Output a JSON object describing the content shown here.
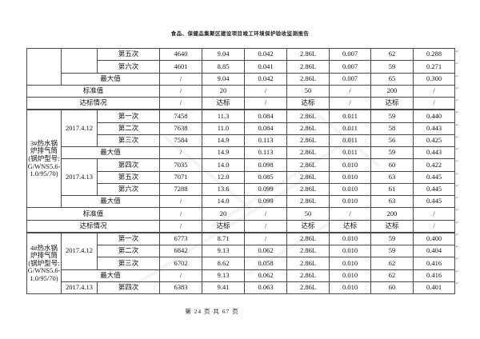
{
  "page": {
    "title": "食品、保健品集聚区建设项目竣工环境保护验收监测报告",
    "footer": "第 24 页 共 67 页",
    "paragraph_mark": "↵"
  },
  "colors": {
    "ink": "#111111",
    "table_border": "#4a4a4a",
    "watermark": "#dcdcdc"
  },
  "table": {
    "columns": 10,
    "rows": [
      {
        "cells": [
          {
            "t": "",
            "rs": 3,
            "n": "boiler-label-cell"
          },
          {
            "t": "",
            "rs": 2,
            "n": "date-cell"
          },
          {
            "t": "第五次",
            "n": "sample-round"
          },
          {
            "t": "4640",
            "n": "value-cell"
          },
          {
            "t": "9.04",
            "n": "value-cell"
          },
          {
            "t": "0.042",
            "n": "value-cell"
          },
          {
            "t": "2.86L",
            "n": "value-cell"
          },
          {
            "t": "0.007",
            "n": "value-cell"
          },
          {
            "t": "62",
            "n": "value-cell"
          },
          {
            "t": "0.288",
            "n": "value-cell"
          }
        ]
      },
      {
        "cells": [
          {
            "t": "第六次",
            "n": "sample-round"
          },
          {
            "t": "4601",
            "n": "value-cell"
          },
          {
            "t": "8.85",
            "n": "value-cell"
          },
          {
            "t": "0.041",
            "n": "value-cell"
          },
          {
            "t": "2.86L",
            "n": "value-cell"
          },
          {
            "t": "0.007",
            "n": "value-cell"
          },
          {
            "t": "59",
            "n": "value-cell"
          },
          {
            "t": "0.271",
            "n": "value-cell"
          }
        ]
      },
      {
        "cells": [
          {
            "t": "最大值",
            "cs": 2,
            "n": "max-value-label"
          },
          {
            "t": "/",
            "n": "value-cell"
          },
          {
            "t": "9.04",
            "n": "value-cell"
          },
          {
            "t": "0.042",
            "n": "value-cell"
          },
          {
            "t": "2.86L",
            "n": "value-cell"
          },
          {
            "t": "0.007",
            "n": "value-cell"
          },
          {
            "t": "65",
            "n": "value-cell"
          },
          {
            "t": "0.300",
            "n": "value-cell"
          }
        ]
      },
      {
        "cells": [
          {
            "t": "标准值",
            "cs": 3,
            "n": "standard-value-label"
          },
          {
            "t": "/",
            "n": "value-cell"
          },
          {
            "t": "20",
            "n": "value-cell"
          },
          {
            "t": "/",
            "n": "value-cell"
          },
          {
            "t": "50",
            "n": "value-cell"
          },
          {
            "t": "/",
            "n": "value-cell"
          },
          {
            "t": "200",
            "n": "value-cell"
          },
          {
            "t": "/",
            "n": "value-cell"
          }
        ]
      },
      {
        "cls": "section-end",
        "cells": [
          {
            "t": "达标情况",
            "cs": 3,
            "n": "compliance-label"
          },
          {
            "t": "/",
            "n": "compliance-status"
          },
          {
            "t": "达标",
            "n": "compliance-status"
          },
          {
            "t": "/",
            "n": "compliance-status"
          },
          {
            "t": "达标",
            "n": "compliance-status"
          },
          {
            "t": "/",
            "n": "compliance-status"
          },
          {
            "t": "达标",
            "n": "compliance-status"
          },
          {
            "t": "/",
            "n": "compliance-status"
          }
        ]
      },
      {
        "cells": [
          {
            "t": "3#热水锅炉排气筒(锅炉型号:G/WNS5.6-1.0/95/70)",
            "rs": 8,
            "cls": "boiler",
            "n": "boiler-label-cell"
          },
          {
            "t": "2017.4.12",
            "rs": 3,
            "n": "sample-date"
          },
          {
            "t": "第一次",
            "n": "sample-round"
          },
          {
            "t": "7458",
            "n": "value-cell"
          },
          {
            "t": "11.3",
            "n": "value-cell"
          },
          {
            "t": "0.084",
            "n": "value-cell"
          },
          {
            "t": "2.86L",
            "n": "value-cell"
          },
          {
            "t": "0.011",
            "n": "value-cell"
          },
          {
            "t": "59",
            "n": "value-cell"
          },
          {
            "t": "0.440",
            "n": "value-cell"
          }
        ]
      },
      {
        "cells": [
          {
            "t": "第二次",
            "n": "sample-round"
          },
          {
            "t": "7638",
            "n": "value-cell"
          },
          {
            "t": "11.0",
            "n": "value-cell"
          },
          {
            "t": "0.084",
            "n": "value-cell"
          },
          {
            "t": "2.86L",
            "n": "value-cell"
          },
          {
            "t": "0.011",
            "n": "value-cell"
          },
          {
            "t": "58",
            "n": "value-cell"
          },
          {
            "t": "0.443",
            "n": "value-cell"
          }
        ]
      },
      {
        "cells": [
          {
            "t": "第三次",
            "n": "sample-round"
          },
          {
            "t": "7584",
            "n": "value-cell"
          },
          {
            "t": "14.9",
            "n": "value-cell"
          },
          {
            "t": "0.113",
            "n": "value-cell"
          },
          {
            "t": "2.86L",
            "n": "value-cell"
          },
          {
            "t": "0.011",
            "n": "value-cell"
          },
          {
            "t": "56",
            "n": "value-cell"
          },
          {
            "t": "0.425",
            "n": "value-cell"
          }
        ]
      },
      {
        "cells": [
          {
            "t": "最大值",
            "cs": 2,
            "n": "max-value-label"
          },
          {
            "t": "/",
            "n": "value-cell"
          },
          {
            "t": "14.9",
            "n": "value-cell"
          },
          {
            "t": "0.113",
            "n": "value-cell"
          },
          {
            "t": "2.86L",
            "n": "value-cell"
          },
          {
            "t": "0.011",
            "n": "value-cell"
          },
          {
            "t": "59",
            "n": "value-cell"
          },
          {
            "t": "0.443",
            "n": "value-cell"
          }
        ]
      },
      {
        "cells": [
          {
            "t": "2017.4.13",
            "rs": 3,
            "cls": "datewrap",
            "n": "sample-date"
          },
          {
            "t": "第四次",
            "n": "sample-round"
          },
          {
            "t": "7035",
            "n": "value-cell"
          },
          {
            "t": "14.0",
            "n": "value-cell"
          },
          {
            "t": "0.098",
            "n": "value-cell"
          },
          {
            "t": "2.86L",
            "n": "value-cell"
          },
          {
            "t": "0.010",
            "n": "value-cell"
          },
          {
            "t": "60",
            "n": "value-cell"
          },
          {
            "t": "0.422",
            "n": "value-cell"
          }
        ]
      },
      {
        "cells": [
          {
            "t": "第五次",
            "n": "sample-round"
          },
          {
            "t": "7071",
            "n": "value-cell"
          },
          {
            "t": "12.0",
            "n": "value-cell"
          },
          {
            "t": "0.085",
            "n": "value-cell"
          },
          {
            "t": "2.86L",
            "n": "value-cell"
          },
          {
            "t": "0.010",
            "n": "value-cell"
          },
          {
            "t": "63",
            "n": "value-cell"
          },
          {
            "t": "0.445",
            "n": "value-cell"
          }
        ]
      },
      {
        "cells": [
          {
            "t": "第六次",
            "n": "sample-round"
          },
          {
            "t": "7288",
            "n": "value-cell"
          },
          {
            "t": "13.6",
            "n": "value-cell"
          },
          {
            "t": "0.099",
            "n": "value-cell"
          },
          {
            "t": "2.86L",
            "n": "value-cell"
          },
          {
            "t": "0.010",
            "n": "value-cell"
          },
          {
            "t": "61",
            "n": "value-cell"
          },
          {
            "t": "0.445",
            "n": "value-cell"
          }
        ]
      },
      {
        "cells": [
          {
            "t": "最大值",
            "cs": 2,
            "n": "max-value-label"
          },
          {
            "t": "/",
            "n": "value-cell"
          },
          {
            "t": "14.0",
            "n": "value-cell"
          },
          {
            "t": "0.099",
            "n": "value-cell"
          },
          {
            "t": "2.86L",
            "n": "value-cell"
          },
          {
            "t": "0.010",
            "n": "value-cell"
          },
          {
            "t": "63",
            "n": "value-cell"
          },
          {
            "t": "0.445",
            "n": "value-cell"
          }
        ]
      },
      {
        "cells": [
          {
            "t": "标准值",
            "cs": 3,
            "n": "standard-value-label"
          },
          {
            "t": "/",
            "n": "value-cell"
          },
          {
            "t": "20",
            "n": "value-cell"
          },
          {
            "t": "/",
            "n": "value-cell"
          },
          {
            "t": "50",
            "n": "value-cell"
          },
          {
            "t": "/",
            "n": "value-cell"
          },
          {
            "t": "200",
            "n": "value-cell"
          },
          {
            "t": "/",
            "n": "value-cell"
          }
        ]
      },
      {
        "cls": "section-end",
        "cells": [
          {
            "t": "达标情况",
            "cs": 3,
            "n": "compliance-label"
          },
          {
            "t": "/",
            "n": "compliance-status"
          },
          {
            "t": "达标",
            "n": "compliance-status"
          },
          {
            "t": "/",
            "n": "compliance-status"
          },
          {
            "t": "达标",
            "n": "compliance-status"
          },
          {
            "t": "达标",
            "n": "compliance-status"
          },
          {
            "t": "达标",
            "n": "compliance-status"
          },
          {
            "t": "/",
            "n": "compliance-status"
          }
        ]
      },
      {
        "cells": [
          {
            "t": "4#热水锅炉排气筒(锅炉型号:G/WNS5.6-1.0/95/70)",
            "rs": 5,
            "cls": "boiler",
            "n": "boiler-label-cell"
          },
          {
            "t": "2017.4.12",
            "rs": 3,
            "n": "sample-date"
          },
          {
            "t": "第一次",
            "n": "sample-round"
          },
          {
            "t": "6773",
            "n": "value-cell"
          },
          {
            "t": "8.71",
            "n": "value-cell"
          },
          {
            "t": "/",
            "n": "value-cell"
          },
          {
            "t": "2.86L",
            "n": "value-cell"
          },
          {
            "t": "0.010",
            "n": "value-cell"
          },
          {
            "t": "59",
            "n": "value-cell"
          },
          {
            "t": "0.400",
            "n": "value-cell"
          }
        ]
      },
      {
        "cells": [
          {
            "t": "第二次",
            "n": "sample-round"
          },
          {
            "t": "6842",
            "n": "value-cell"
          },
          {
            "t": "9.13",
            "n": "value-cell"
          },
          {
            "t": "0.062",
            "n": "value-cell"
          },
          {
            "t": "2.86L",
            "n": "value-cell"
          },
          {
            "t": "0.010",
            "n": "value-cell"
          },
          {
            "t": "59",
            "n": "value-cell"
          },
          {
            "t": "0.404",
            "n": "value-cell"
          }
        ]
      },
      {
        "cells": [
          {
            "t": "第三次",
            "n": "sample-round"
          },
          {
            "t": "6702",
            "n": "value-cell"
          },
          {
            "t": "8.62",
            "n": "value-cell"
          },
          {
            "t": "0.058",
            "n": "value-cell"
          },
          {
            "t": "2.86L",
            "n": "value-cell"
          },
          {
            "t": "0.010",
            "n": "value-cell"
          },
          {
            "t": "62",
            "n": "value-cell"
          },
          {
            "t": "0.416",
            "n": "value-cell"
          }
        ]
      },
      {
        "cells": [
          {
            "t": "最大值",
            "cs": 2,
            "n": "max-value-label"
          },
          {
            "t": "/",
            "n": "value-cell"
          },
          {
            "t": "9.13",
            "n": "value-cell"
          },
          {
            "t": "0.062",
            "n": "value-cell"
          },
          {
            "t": "2.86L",
            "n": "value-cell"
          },
          {
            "t": "0.010",
            "n": "value-cell"
          },
          {
            "t": "62",
            "n": "value-cell"
          },
          {
            "t": "0.416",
            "n": "value-cell"
          }
        ]
      },
      {
        "cells": [
          {
            "t": "2017.4.13",
            "n": "sample-date"
          },
          {
            "t": "第四次",
            "n": "sample-round"
          },
          {
            "t": "6383",
            "n": "value-cell"
          },
          {
            "t": "9.41",
            "n": "value-cell"
          },
          {
            "t": "0.063",
            "n": "value-cell"
          },
          {
            "t": "2.86L",
            "n": "value-cell"
          },
          {
            "t": "0.010",
            "n": "value-cell"
          },
          {
            "t": "60",
            "n": "value-cell"
          },
          {
            "t": "0.401",
            "n": "value-cell"
          }
        ]
      }
    ]
  }
}
